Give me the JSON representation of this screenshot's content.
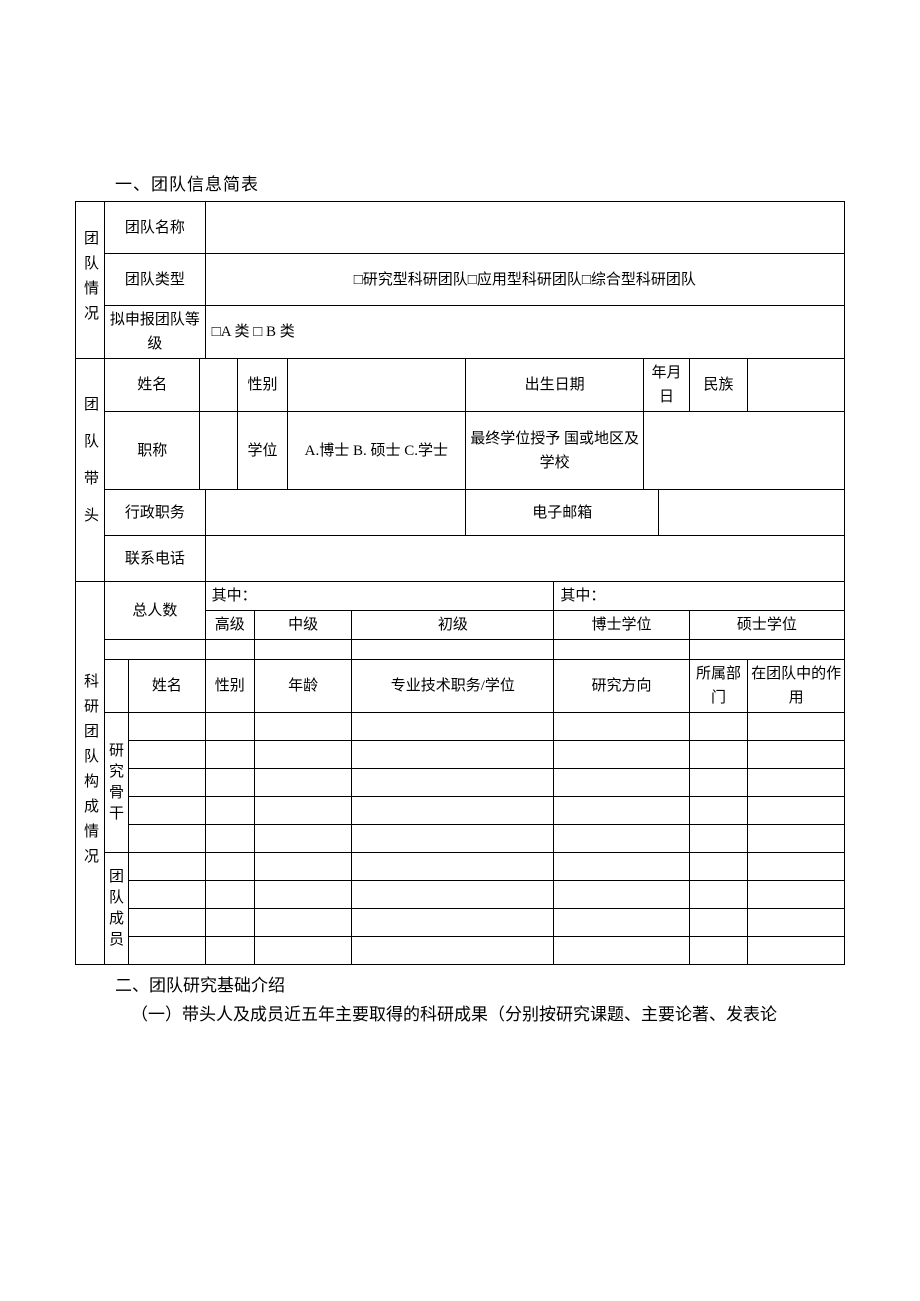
{
  "section1_title": "一、团队信息简表",
  "team_info": {
    "side_label": "团队情况",
    "team_name_label": "团队名称",
    "team_type_label": "团队类型",
    "team_type_options": "□研究型科研团队□应用型科研团队□综合型科研团队",
    "apply_level_label": "拟申报团队等级",
    "apply_level_options": "□A 类 □ B 类"
  },
  "leader": {
    "side_label": "团队带头",
    "name_label": "姓名",
    "gender_label": "性别",
    "birth_label": "出生日期",
    "birth_value": "年月日",
    "ethnic_label": "民族",
    "title_label": "职称",
    "degree_label": "学位",
    "degree_options": "A.博士 B. 硕士 C.学士",
    "degree_school_label": "最终学位授予 国或地区及学校",
    "admin_label": "行政职务",
    "email_label": "电子邮箱",
    "phone_label": "联系电话"
  },
  "compose": {
    "side_label": "科研团队构成情况",
    "total_label": "总人数",
    "among_label": "其中：",
    "senior_label": "高级",
    "mid_label": "中级",
    "junior_label": "初级",
    "phd_label": "博士学位",
    "master_label": "硕士学位",
    "col_name": "姓名",
    "col_gender": "性别",
    "col_age": "年龄",
    "col_title_degree": "专业技术职务/学位",
    "col_research": "研究方向",
    "col_dept": "所属部门",
    "col_role": "在团队中的作用",
    "backbone_label": "研究骨干",
    "member_label": "团队成员"
  },
  "section2_title": "二、团队研究基础介绍",
  "section2_sub": "（一）带头人及成员近五年主要取得的科研成果（分别按研究课题、主要论著、发表论"
}
